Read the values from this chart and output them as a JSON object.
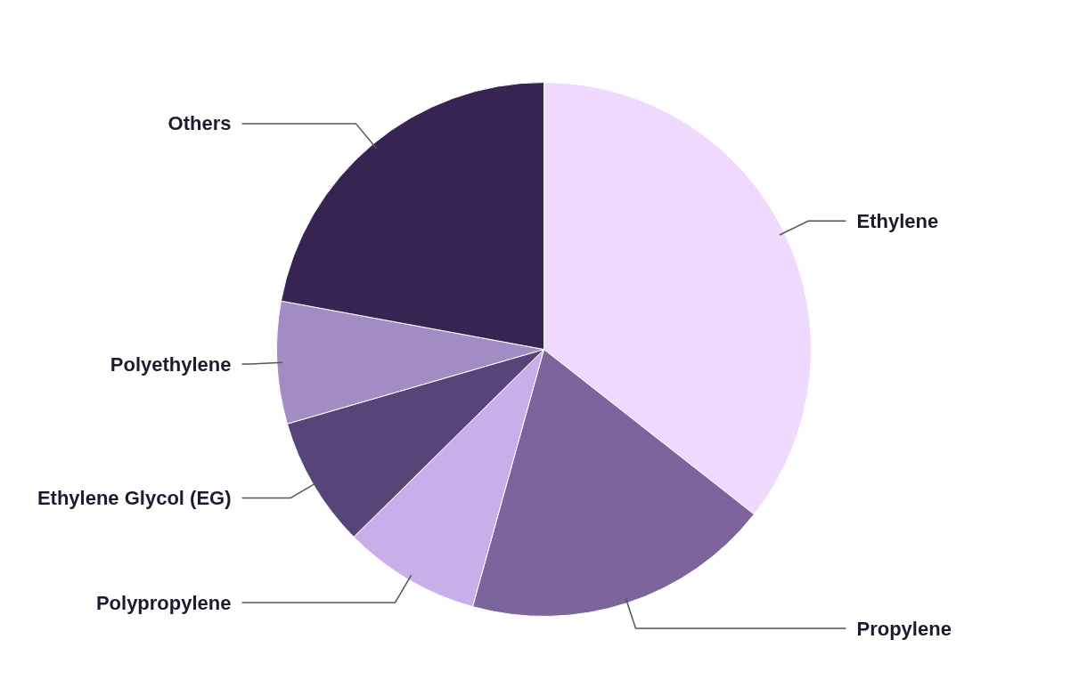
{
  "chart_data": {
    "type": "pie",
    "categories": [
      "Ethylene",
      "Propylene",
      "Polypropylene",
      "Ethylene Glycol (EG)",
      "Polyethylene",
      "Others"
    ],
    "values": [
      35.6,
      18.7,
      8.3,
      7.9,
      7.4,
      22.1
    ],
    "colors": [
      "#f0d9fe",
      "#7b659c",
      "#c9aeea",
      "#574479",
      "#a38bc4",
      "#372452"
    ],
    "legend": false
  }
}
